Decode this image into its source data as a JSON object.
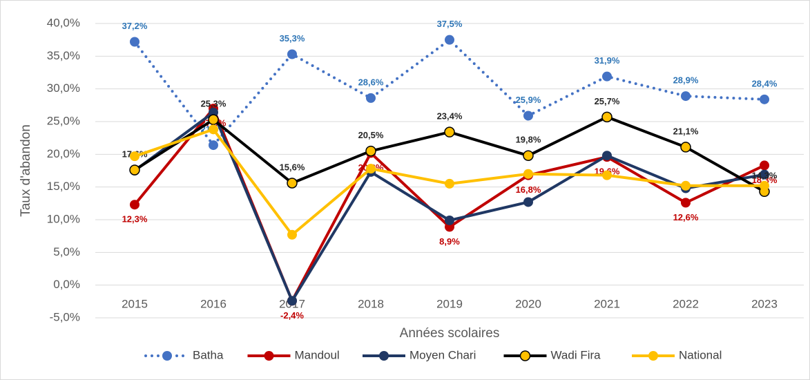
{
  "chart_data": {
    "type": "line",
    "x_label": "Années scolaires",
    "y_label": "Taux d'abandon",
    "categories": [
      "2015",
      "2016",
      "2017",
      "2018",
      "2019",
      "2020",
      "2021",
      "2022",
      "2023"
    ],
    "series": [
      {
        "name": "Batha",
        "color": "#4472c4",
        "line_style": "dotted",
        "label_color": "#2e75b6",
        "values": [
          37.2,
          21.4,
          35.3,
          28.6,
          37.5,
          25.9,
          31.9,
          28.9,
          28.4
        ],
        "value_labels": [
          "37,2%",
          "21,4%",
          "35,3%",
          "28,6%",
          "37,5%",
          "25,9%",
          "31,9%",
          "28,9%",
          "28,4%"
        ]
      },
      {
        "name": "Mandoul",
        "color": "#c00000",
        "label_color": "#c00000",
        "values": [
          12.3,
          27.0,
          -2.4,
          20.2,
          8.9,
          16.8,
          19.6,
          12.6,
          18.3
        ],
        "value_labels": [
          "12,3%",
          "27,0%",
          "-2,4%",
          "20,2%",
          "8,9%",
          "16,8%",
          "19,6%",
          "12,6%",
          "18,3%"
        ]
      },
      {
        "name": "Moyen Chari",
        "color": "#203864",
        "values": [
          17.5,
          26.4,
          -2.4,
          17.3,
          9.9,
          12.7,
          19.8,
          14.8,
          16.9
        ]
      },
      {
        "name": "Wadi Fira",
        "color": "#000000",
        "marker_color": "#ffc000",
        "label_color": "#262626",
        "values": [
          17.6,
          25.3,
          15.6,
          20.5,
          23.4,
          19.8,
          25.7,
          21.1,
          14.3
        ],
        "value_labels": [
          "17,6%",
          "25,3%",
          "15,6%",
          "20,5%",
          "23,4%",
          "19,8%",
          "25,7%",
          "21,1%",
          "14,3%"
        ]
      },
      {
        "name": "National",
        "color": "#ffc000",
        "values": [
          19.7,
          23.8,
          7.7,
          17.8,
          15.5,
          17.0,
          16.8,
          15.2,
          15.2
        ]
      }
    ],
    "ylim": [
      -5,
      40
    ],
    "yticks": [
      {
        "value": -5,
        "label": "-5,0%"
      },
      {
        "value": 0,
        "label": "0,0%"
      },
      {
        "value": 5,
        "label": "5,0%"
      },
      {
        "value": 10,
        "label": "10,0%"
      },
      {
        "value": 15,
        "label": "15,0%"
      },
      {
        "value": 20,
        "label": "20,0%"
      },
      {
        "value": 25,
        "label": "25,0%"
      },
      {
        "value": 30,
        "label": "30,0%"
      },
      {
        "value": 35,
        "label": "35,0%"
      },
      {
        "value": 40,
        "label": "40,0%"
      }
    ],
    "grid": true,
    "legend": "bottom"
  }
}
